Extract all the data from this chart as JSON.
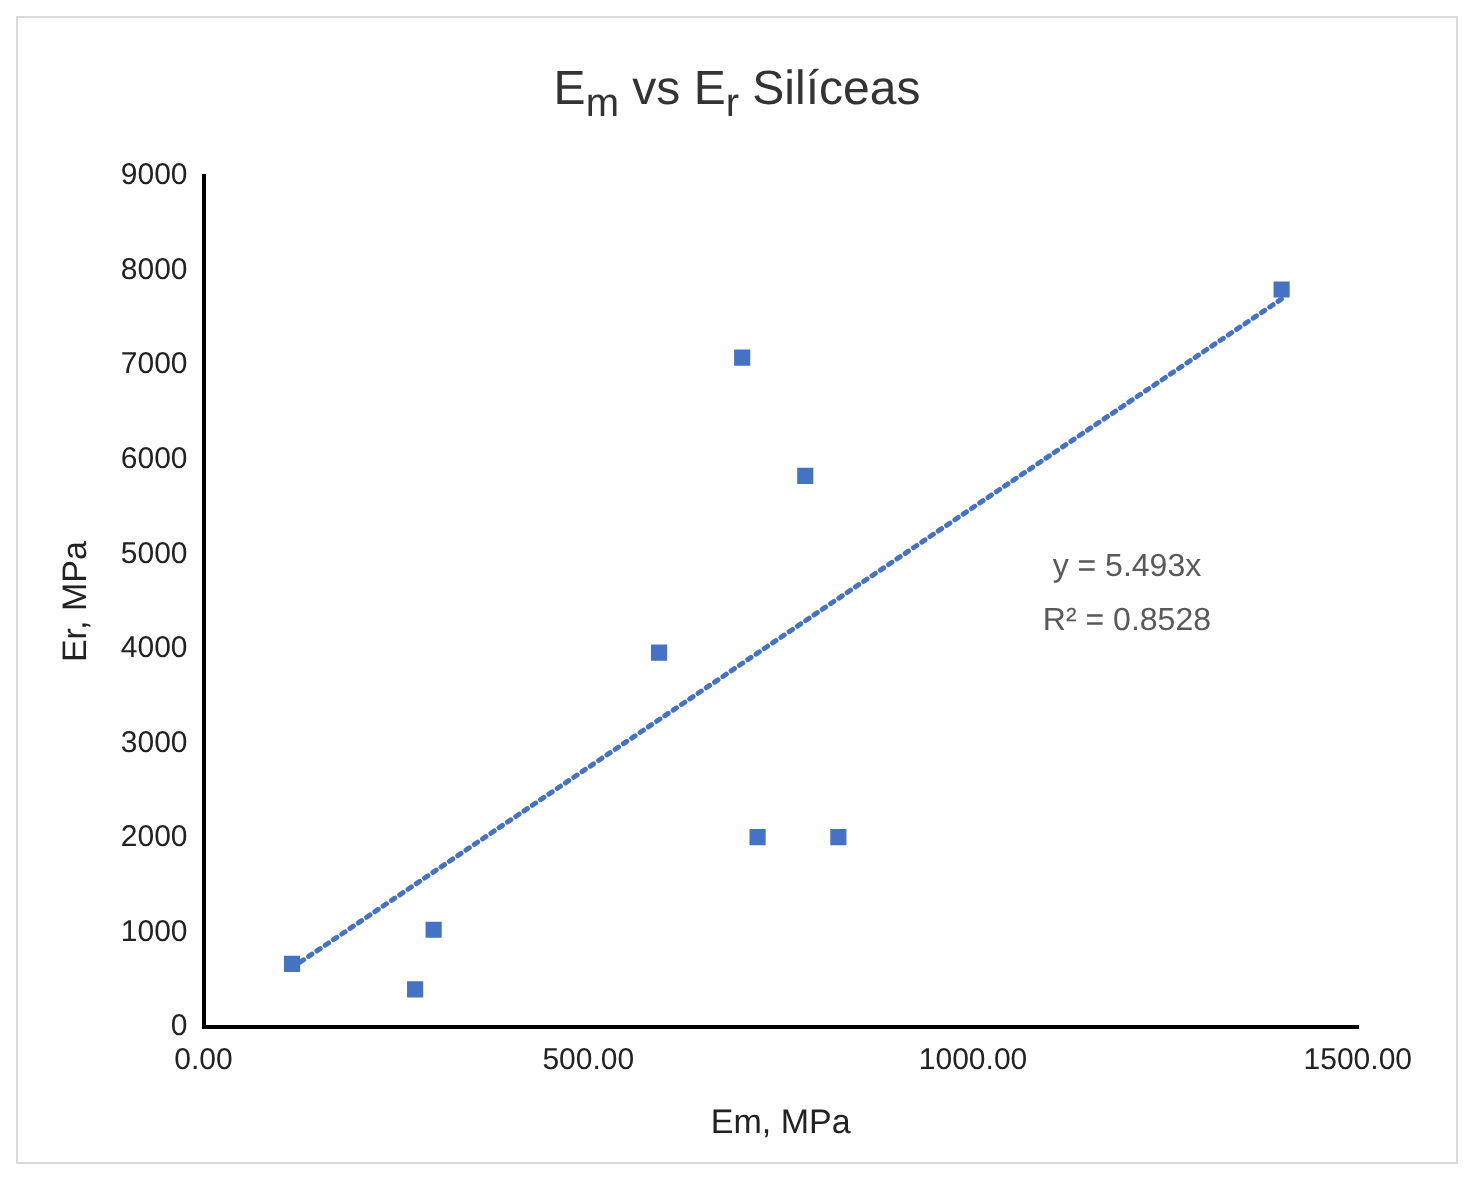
{
  "chart_data": {
    "type": "scatter",
    "title": "E$_{m}$ vs E$_{r}$ Silíceas",
    "xlabel": "Em, MPa",
    "ylabel": "Er, MPa",
    "x": [
      115,
      275,
      299,
      592,
      700,
      720,
      782,
      825,
      1401
    ],
    "series": [
      {
        "color": "#4472c4",
        "marker": "square",
        "values": [
          670,
          400,
          1030,
          3960,
          7080,
          2010,
          5830,
          2010,
          7800
        ]
      },
      {
        "type": "line",
        "color": "#4472c4",
        "line_style": "dotted",
        "marker": "none",
        "x": [
          115,
          1401
        ],
        "values": [
          630,
          7700
        ]
      }
    ],
    "xlim": [
      0,
      1500
    ],
    "xticks": [
      {
        "value": 0,
        "label": "0.00"
      },
      {
        "value": 500,
        "label": "500.00"
      },
      {
        "value": 1000,
        "label": "1000.00"
      },
      {
        "value": 1500,
        "label": "1500.00"
      }
    ],
    "ylim": [
      0,
      9000
    ],
    "yticks": [
      0,
      1000,
      2000,
      3000,
      4000,
      5000,
      6000,
      7000,
      8000,
      9000
    ],
    "annotations": [
      "y = 5.493x",
      "R² = 0.8528"
    ],
    "grid": false,
    "legend": false
  }
}
